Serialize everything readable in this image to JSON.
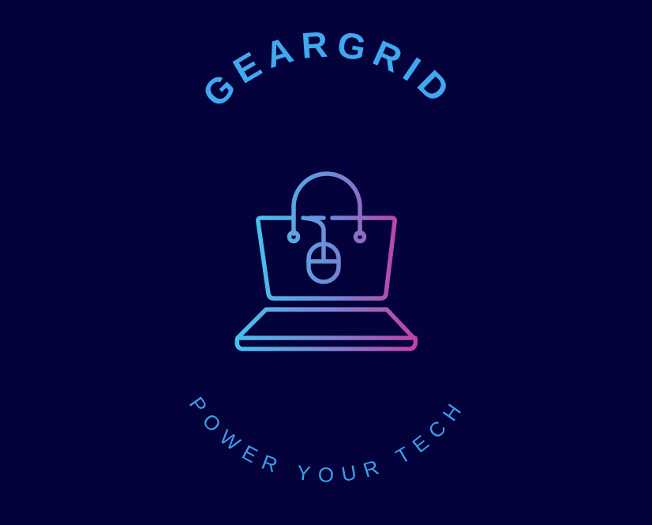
{
  "logo": {
    "brand_name": "GEARGRID",
    "tagline": "POWER YOUR TECH"
  },
  "colors": {
    "background": "#03023a",
    "brand_text": "#3fa8f0",
    "tagline_text": "#3a9ee8",
    "gradient_start": "#44c4ee",
    "gradient_mid": "#6f88d6",
    "gradient_end": "#c23fa6"
  },
  "icons": {
    "emblem": "shopping-bag-laptop-mouse-icon"
  }
}
